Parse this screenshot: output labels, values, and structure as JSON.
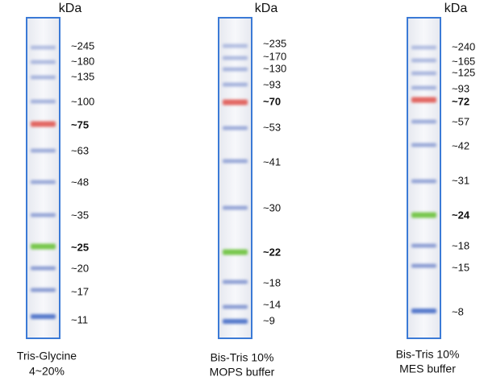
{
  "lanes": [
    {
      "unit": "kDa",
      "markers": [
        {
          "label": "~245"
        },
        {
          "label": "~180"
        },
        {
          "label": "~135"
        },
        {
          "label": "~100"
        },
        {
          "label": "~75"
        },
        {
          "label": "~63"
        },
        {
          "label": "~48"
        },
        {
          "label": "~35"
        },
        {
          "label": "~25"
        },
        {
          "label": "~20"
        },
        {
          "label": "~17"
        },
        {
          "label": "~11"
        }
      ],
      "caption": [
        "Tris-Glycine",
        "4~20%"
      ]
    },
    {
      "unit": "kDa",
      "markers": [
        {
          "label": "~235"
        },
        {
          "label": "~170"
        },
        {
          "label": "~130"
        },
        {
          "label": "~93"
        },
        {
          "label": "~70"
        },
        {
          "label": "~53"
        },
        {
          "label": "~41"
        },
        {
          "label": "~30"
        },
        {
          "label": "~22"
        },
        {
          "label": "~18"
        },
        {
          "label": "~14"
        },
        {
          "label": "~9"
        }
      ],
      "caption": [
        "Bis-Tris 10%",
        "MOPS buffer"
      ]
    },
    {
      "unit": "kDa",
      "markers": [
        {
          "label": "~240"
        },
        {
          "label": "~165"
        },
        {
          "label": "~125"
        },
        {
          "label": "~93"
        },
        {
          "label": "~72"
        },
        {
          "label": "~57"
        },
        {
          "label": "~42"
        },
        {
          "label": "~31"
        },
        {
          "label": "~24"
        },
        {
          "label": "~18"
        },
        {
          "label": "~15"
        },
        {
          "label": "~8"
        }
      ],
      "caption": [
        "Bis-Tris 10%",
        "MES buffer"
      ]
    }
  ]
}
